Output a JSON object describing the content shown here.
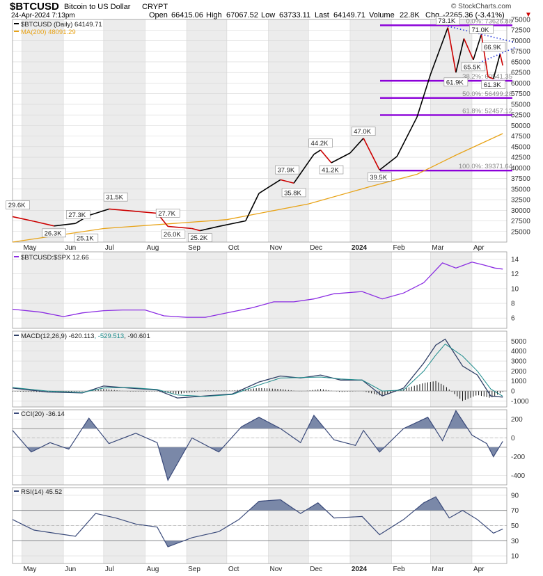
{
  "header": {
    "symbol": "$BTCUSD",
    "name": "Bitcoin to US Dollar",
    "exchange": "CRYPT",
    "date": "24-Apr-2024 7:13pm",
    "open_label": "Open",
    "open": "66415.06",
    "high_label": "High",
    "high": "67067.52",
    "low_label": "Low",
    "low": "63733.11",
    "last_label": "Last",
    "last": "64149.71",
    "volume_label": "Volume",
    "volume": "22.8K",
    "chg_label": "Chg",
    "chg": "-2265.36 (-3.41%)",
    "copyright": "© StockCharts.com"
  },
  "colors": {
    "price_up": "#000000",
    "price_down": "#cc0000",
    "ma": "#e8a317",
    "ratio": "#8a2be2",
    "macd": "#2f3f66",
    "signal": "#1e8c8c",
    "fib": "#8b00d9",
    "indicator": "#3a4a7a",
    "fill": "#7a88a8"
  },
  "chart_data": [
    {
      "type": "line",
      "title": "$BTCUSD (Daily) 64149.71",
      "series": [
        {
          "name": "$BTCUSD (Daily) 64149.71",
          "x": [
            "2023-04-24",
            "2023-05-10",
            "2023-05-25",
            "2023-06-10",
            "2023-06-20",
            "2023-07-05",
            "2023-07-20",
            "2023-08-10",
            "2023-08-18",
            "2023-09-05",
            "2023-09-11",
            "2023-09-25",
            "2023-10-15",
            "2023-10-25",
            "2023-11-10",
            "2023-11-20",
            "2023-12-05",
            "2023-12-10",
            "2023-12-18",
            "2024-01-01",
            "2024-01-11",
            "2024-01-23",
            "2024-02-05",
            "2024-02-20",
            "2024-03-01",
            "2024-03-14",
            "2024-03-20",
            "2024-03-26",
            "2024-04-02",
            "2024-04-08",
            "2024-04-13",
            "2024-04-17",
            "2024-04-22",
            "2024-04-24"
          ],
          "values": [
            28500,
            27400,
            26300,
            26900,
            28800,
            30300,
            29900,
            29300,
            26200,
            25700,
            25200,
            26200,
            27500,
            34000,
            37200,
            36400,
            43200,
            44200,
            41200,
            43500,
            47000,
            39500,
            42700,
            52000,
            62000,
            73100,
            62500,
            70500,
            65500,
            71500,
            61500,
            61000,
            66900,
            64149.71
          ]
        },
        {
          "name": "MA(200) 48091.29",
          "x": [
            "2023-04-24",
            "2023-07-01",
            "2023-10-01",
            "2023-12-01",
            "2024-01-15",
            "2024-02-20",
            "2024-03-20",
            "2024-04-24"
          ],
          "values": [
            22500,
            25700,
            27800,
            31500,
            35500,
            38500,
            43000,
            48091.29
          ]
        }
      ],
      "annotations": [
        "29.6K",
        "26.3K",
        "27.3K",
        "25.1K",
        "31.5K",
        "27.7K",
        "26.0K",
        "25.2K",
        "37.9K",
        "35.8K",
        "44.2K",
        "41.2K",
        "47.0K",
        "39.5K",
        "73.1K",
        "61.9K",
        "65.5K",
        "71.0K",
        "66.9K",
        "61.3K"
      ],
      "fib_levels": [
        {
          "label": "0.0%: 73626.88",
          "value": 73626.88
        },
        {
          "label": "38.2%: 60541.35",
          "value": 60541.35
        },
        {
          "label": "50.0%: 56499.28",
          "value": 56499.28
        },
        {
          "label": "61.8%: 52457.12",
          "value": 52457.12
        },
        {
          "label": "100.0%: 39371.64",
          "value": 39371.64
        }
      ],
      "ylim": [
        22500,
        75000
      ],
      "y_ticks": [
        25000,
        27500,
        30000,
        32500,
        35000,
        37500,
        40000,
        42500,
        45000,
        47500,
        50000,
        52500,
        55000,
        57500,
        60000,
        62500,
        65000,
        67500,
        70000,
        72500,
        75000
      ],
      "x_ticks": [
        "May",
        "Jun",
        "Jul",
        "Aug",
        "Sep",
        "Oct",
        "Nov",
        "Dec",
        "2024",
        "Feb",
        "Mar",
        "Apr"
      ],
      "legend": "top-left"
    },
    {
      "type": "line",
      "title": "$BTCUSD:$SPX 12.66",
      "series": [
        {
          "name": "$BTCUSD:$SPX 12.66",
          "x": [
            "2023-04-24",
            "2023-05-15",
            "2023-06-01",
            "2023-06-15",
            "2023-07-01",
            "2023-07-15",
            "2023-08-01",
            "2023-08-15",
            "2023-09-01",
            "2023-09-15",
            "2023-10-01",
            "2023-10-20",
            "2023-11-05",
            "2023-11-20",
            "2023-12-05",
            "2023-12-20",
            "2024-01-10",
            "2024-01-25",
            "2024-02-10",
            "2024-02-25",
            "2024-03-10",
            "2024-03-20",
            "2024-04-01",
            "2024-04-10",
            "2024-04-18",
            "2024-04-24"
          ],
          "values": [
            7.2,
            6.8,
            6.2,
            6.7,
            7.0,
            7.1,
            7.1,
            6.3,
            6.1,
            6.1,
            6.7,
            7.4,
            8.2,
            8.2,
            8.6,
            9.3,
            9.6,
            8.6,
            9.4,
            10.8,
            13.5,
            12.8,
            13.6,
            13.2,
            12.8,
            12.66
          ]
        }
      ],
      "ylim": [
        4.6,
        15.0
      ],
      "y_ticks": [
        6,
        8,
        10,
        12,
        14
      ],
      "legend": "top-left"
    },
    {
      "type": "line",
      "title": "MACD(12,26,9) -620.113, -529.513, -90.601",
      "series": [
        {
          "name": "MACD(12,26,9) -620.113",
          "x": [
            "2023-04-24",
            "2023-05-20",
            "2023-06-15",
            "2023-07-01",
            "2023-07-20",
            "2023-08-10",
            "2023-08-25",
            "2023-09-15",
            "2023-10-05",
            "2023-10-25",
            "2023-11-10",
            "2023-11-25",
            "2023-12-10",
            "2023-12-25",
            "2024-01-10",
            "2024-01-25",
            "2024-02-10",
            "2024-02-25",
            "2024-03-05",
            "2024-03-12",
            "2024-03-25",
            "2024-04-05",
            "2024-04-15",
            "2024-04-24"
          ],
          "values": [
            300,
            -100,
            -200,
            500,
            300,
            100,
            -700,
            -500,
            -300,
            900,
            1500,
            1300,
            1600,
            1100,
            1100,
            -500,
            300,
            2800,
            4600,
            5200,
            2500,
            1600,
            -500,
            -620.113
          ]
        },
        {
          "name": "-529.513",
          "x": [
            "2023-04-24",
            "2023-05-20",
            "2023-06-15",
            "2023-07-01",
            "2023-07-20",
            "2023-08-10",
            "2023-08-25",
            "2023-09-15",
            "2023-10-05",
            "2023-10-25",
            "2023-11-10",
            "2023-11-25",
            "2023-12-10",
            "2023-12-25",
            "2024-01-10",
            "2024-01-25",
            "2024-02-10",
            "2024-02-25",
            "2024-03-05",
            "2024-03-12",
            "2024-03-25",
            "2024-04-05",
            "2024-04-15",
            "2024-04-24"
          ],
          "values": [
            350,
            0,
            -150,
            300,
            350,
            150,
            -400,
            -550,
            -350,
            600,
            1300,
            1350,
            1400,
            1200,
            1100,
            0,
            100,
            2000,
            3600,
            4700,
            3500,
            2000,
            200,
            -529.513
          ]
        },
        {
          "name": "-90.601",
          "x": [
            "2024-04-24"
          ],
          "values": [
            -90.601
          ]
        }
      ],
      "ylim": [
        -1600,
        6000
      ],
      "y_ticks": [
        -1000,
        0,
        1000,
        2000,
        3000,
        4000,
        5000
      ],
      "legend": "top-left"
    },
    {
      "type": "line",
      "title": "CCI(20) -36.14",
      "series": [
        {
          "name": "CCI(20) -36.14",
          "x": [
            "2023-04-24",
            "2023-05-08",
            "2023-05-22",
            "2023-06-05",
            "2023-06-20",
            "2023-07-05",
            "2023-07-25",
            "2023-08-10",
            "2023-08-18",
            "2023-09-05",
            "2023-09-25",
            "2023-10-12",
            "2023-10-25",
            "2023-11-10",
            "2023-11-25",
            "2023-12-05",
            "2023-12-20",
            "2024-01-05",
            "2024-01-11",
            "2024-01-23",
            "2024-02-10",
            "2024-02-28",
            "2024-03-10",
            "2024-03-20",
            "2024-04-01",
            "2024-04-12",
            "2024-04-17",
            "2024-04-24"
          ],
          "values": [
            80,
            -150,
            -50,
            -120,
            210,
            -60,
            50,
            -50,
            -450,
            0,
            -150,
            120,
            220,
            100,
            -50,
            240,
            -20,
            -80,
            80,
            -150,
            100,
            220,
            -30,
            290,
            30,
            -60,
            -200,
            -36.14
          ]
        }
      ],
      "ylim": [
        -500,
        300
      ],
      "y_ticks": [
        -400,
        -200,
        0,
        200
      ],
      "legend": "top-left"
    },
    {
      "type": "line",
      "title": "RSI(14) 45.52",
      "series": [
        {
          "name": "RSI(14) 45.52",
          "x": [
            "2023-04-24",
            "2023-05-10",
            "2023-05-25",
            "2023-06-10",
            "2023-06-25",
            "2023-07-10",
            "2023-07-25",
            "2023-08-10",
            "2023-08-18",
            "2023-09-05",
            "2023-09-25",
            "2023-10-10",
            "2023-10-25",
            "2023-11-10",
            "2023-11-25",
            "2023-12-08",
            "2023-12-20",
            "2024-01-10",
            "2024-01-23",
            "2024-02-10",
            "2024-02-25",
            "2024-03-05",
            "2024-03-15",
            "2024-03-25",
            "2024-04-05",
            "2024-04-17",
            "2024-04-24"
          ],
          "values": [
            58,
            44,
            40,
            36,
            66,
            60,
            52,
            48,
            22,
            34,
            42,
            58,
            82,
            84,
            66,
            80,
            60,
            62,
            38,
            58,
            80,
            88,
            60,
            70,
            58,
            40,
            45.52
          ]
        }
      ],
      "ylim": [
        0,
        100
      ],
      "y_ticks": [
        10,
        30,
        50,
        70,
        90
      ],
      "legend": "top-left"
    }
  ]
}
